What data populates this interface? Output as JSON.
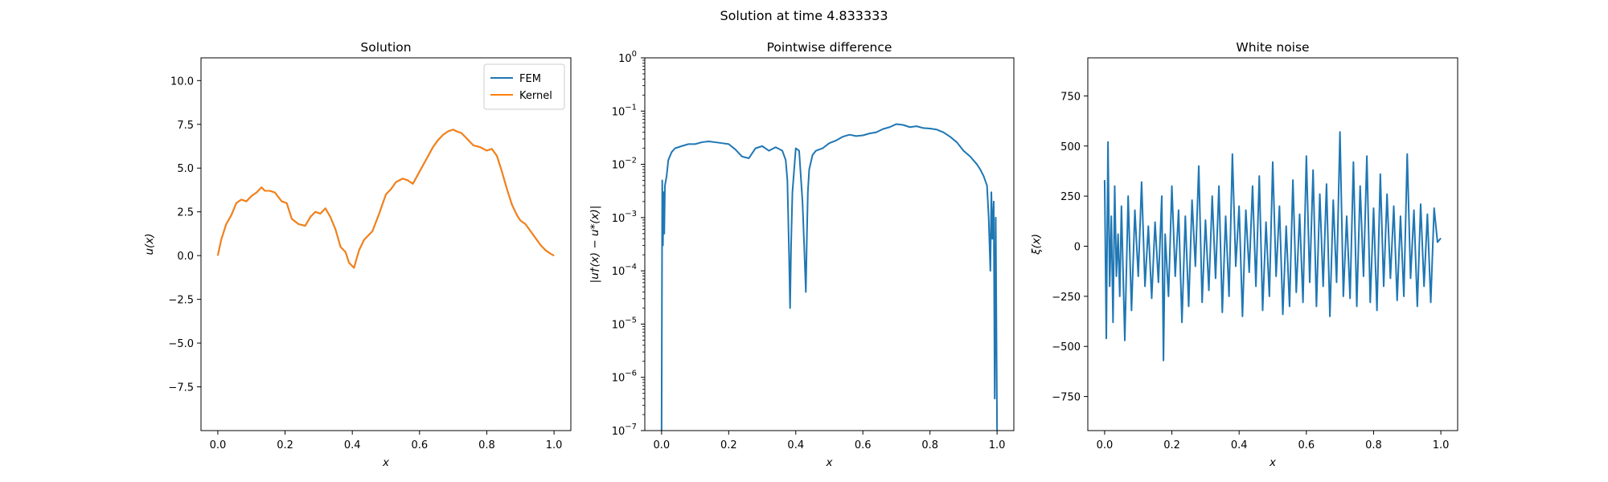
{
  "suptitle": "Solution at time 4.833333",
  "colors": {
    "series1": "#1f77b4",
    "series2": "#ff7f0e"
  },
  "chart_data": [
    {
      "type": "line",
      "title": "Solution",
      "xlabel": "x",
      "ylabel": "u(x)",
      "xlim": [
        -0.05,
        1.05
      ],
      "ylim": [
        -10.0,
        11.3
      ],
      "xticks": [
        0.0,
        0.2,
        0.4,
        0.6,
        0.8,
        1.0
      ],
      "xtick_labels": [
        "0.0",
        "0.2",
        "0.4",
        "0.6",
        "0.8",
        "1.0"
      ],
      "yticks": [
        -7.5,
        -5.0,
        -2.5,
        0.0,
        2.5,
        5.0,
        7.5,
        10.0
      ],
      "ytick_labels": [
        "−7.5",
        "−5.0",
        "−2.5",
        "0.0",
        "2.5",
        "5.0",
        "7.5",
        "10.0"
      ],
      "legend": {
        "placement": "top-right",
        "entries": [
          "FEM",
          "Kernel"
        ]
      },
      "series": [
        {
          "name": "FEM",
          "color": "#1f77b4",
          "x": [
            0.0,
            0.01,
            0.025,
            0.04,
            0.055,
            0.07,
            0.085,
            0.1,
            0.115,
            0.13,
            0.14,
            0.155,
            0.17,
            0.19,
            0.205,
            0.22,
            0.24,
            0.26,
            0.275,
            0.29,
            0.305,
            0.32,
            0.335,
            0.35,
            0.365,
            0.38,
            0.39,
            0.405,
            0.42,
            0.435,
            0.45,
            0.46,
            0.48,
            0.5,
            0.515,
            0.53,
            0.55,
            0.565,
            0.58,
            0.6,
            0.62,
            0.64,
            0.655,
            0.67,
            0.685,
            0.7,
            0.71,
            0.725,
            0.74,
            0.76,
            0.78,
            0.8,
            0.815,
            0.83,
            0.845,
            0.86,
            0.875,
            0.89,
            0.9,
            0.915,
            0.93,
            0.945,
            0.96,
            0.975,
            0.99,
            1.0
          ],
          "y": [
            0.0,
            0.9,
            1.8,
            2.3,
            3.0,
            3.2,
            3.1,
            3.4,
            3.6,
            3.9,
            3.7,
            3.7,
            3.6,
            3.1,
            3.0,
            2.1,
            1.8,
            1.7,
            2.2,
            2.5,
            2.4,
            2.7,
            2.2,
            1.5,
            0.5,
            0.2,
            -0.4,
            -0.7,
            0.3,
            0.9,
            1.2,
            1.4,
            2.4,
            3.5,
            3.8,
            4.2,
            4.4,
            4.3,
            4.1,
            4.8,
            5.5,
            6.2,
            6.6,
            6.9,
            7.1,
            7.2,
            7.1,
            7.0,
            6.7,
            6.3,
            6.2,
            6.0,
            6.1,
            5.7,
            4.8,
            3.8,
            2.9,
            2.3,
            2.0,
            1.8,
            1.4,
            1.0,
            0.6,
            0.3,
            0.1,
            0.0
          ]
        },
        {
          "name": "Kernel",
          "color": "#ff7f0e",
          "x": [
            0.0,
            0.01,
            0.025,
            0.04,
            0.055,
            0.07,
            0.085,
            0.1,
            0.115,
            0.13,
            0.14,
            0.155,
            0.17,
            0.19,
            0.205,
            0.22,
            0.24,
            0.26,
            0.275,
            0.29,
            0.305,
            0.32,
            0.335,
            0.35,
            0.365,
            0.38,
            0.39,
            0.405,
            0.42,
            0.435,
            0.45,
            0.46,
            0.48,
            0.5,
            0.515,
            0.53,
            0.55,
            0.565,
            0.58,
            0.6,
            0.62,
            0.64,
            0.655,
            0.67,
            0.685,
            0.7,
            0.71,
            0.725,
            0.74,
            0.76,
            0.78,
            0.8,
            0.815,
            0.83,
            0.845,
            0.86,
            0.875,
            0.89,
            0.9,
            0.915,
            0.93,
            0.945,
            0.96,
            0.975,
            0.99,
            1.0
          ],
          "y": [
            0.0,
            0.9,
            1.8,
            2.3,
            3.0,
            3.2,
            3.1,
            3.4,
            3.6,
            3.9,
            3.7,
            3.7,
            3.6,
            3.1,
            3.0,
            2.1,
            1.8,
            1.7,
            2.2,
            2.5,
            2.4,
            2.7,
            2.2,
            1.5,
            0.5,
            0.2,
            -0.4,
            -0.7,
            0.3,
            0.9,
            1.2,
            1.4,
            2.4,
            3.5,
            3.8,
            4.2,
            4.4,
            4.3,
            4.1,
            4.8,
            5.5,
            6.2,
            6.6,
            6.9,
            7.1,
            7.2,
            7.1,
            7.0,
            6.7,
            6.3,
            6.2,
            6.0,
            6.1,
            5.7,
            4.8,
            3.8,
            2.9,
            2.3,
            2.0,
            1.8,
            1.4,
            1.0,
            0.6,
            0.3,
            0.1,
            0.0
          ]
        }
      ]
    },
    {
      "type": "line",
      "title": "Pointwise difference",
      "xlabel": "x",
      "ylabel": "|u†(x) − u*(x)|",
      "xlim": [
        -0.05,
        1.05
      ],
      "ylim": [
        1e-07,
        1.0
      ],
      "yscale": "log",
      "xticks": [
        0.0,
        0.2,
        0.4,
        0.6,
        0.8,
        1.0
      ],
      "xtick_labels": [
        "0.0",
        "0.2",
        "0.4",
        "0.6",
        "0.8",
        "1.0"
      ],
      "yticks": [
        1e-07,
        1e-06,
        1e-05,
        0.0001,
        0.001,
        0.01,
        0.1,
        1
      ],
      "ytick_labels": [
        {
          "base": "10",
          "exp": "−7"
        },
        {
          "base": "10",
          "exp": "−6"
        },
        {
          "base": "10",
          "exp": "−5"
        },
        {
          "base": "10",
          "exp": "−4"
        },
        {
          "base": "10",
          "exp": "−3"
        },
        {
          "base": "10",
          "exp": "−2"
        },
        {
          "base": "10",
          "exp": "−1"
        },
        {
          "base": "10",
          "exp": "0"
        }
      ],
      "series": [
        {
          "color": "#1f77b4",
          "x": [
            0.0,
            0.002,
            0.004,
            0.006,
            0.008,
            0.01,
            0.015,
            0.02,
            0.03,
            0.04,
            0.06,
            0.08,
            0.1,
            0.12,
            0.14,
            0.16,
            0.18,
            0.2,
            0.22,
            0.24,
            0.26,
            0.28,
            0.3,
            0.32,
            0.34,
            0.36,
            0.37,
            0.375,
            0.38,
            0.383,
            0.386,
            0.39,
            0.4,
            0.41,
            0.42,
            0.425,
            0.43,
            0.433,
            0.436,
            0.44,
            0.45,
            0.46,
            0.48,
            0.5,
            0.52,
            0.54,
            0.56,
            0.58,
            0.6,
            0.62,
            0.64,
            0.66,
            0.68,
            0.7,
            0.72,
            0.74,
            0.76,
            0.78,
            0.8,
            0.82,
            0.84,
            0.86,
            0.88,
            0.9,
            0.92,
            0.94,
            0.95,
            0.96,
            0.97,
            0.975,
            0.98,
            0.983,
            0.986,
            0.99,
            0.993,
            0.996,
            1.0
          ],
          "y": [
            1e-07,
            0.005,
            0.0003,
            0.003,
            0.0005,
            0.004,
            0.006,
            0.012,
            0.017,
            0.02,
            0.022,
            0.024,
            0.024,
            0.026,
            0.027,
            0.026,
            0.025,
            0.024,
            0.019,
            0.014,
            0.013,
            0.02,
            0.022,
            0.018,
            0.021,
            0.018,
            0.012,
            0.005,
            0.0002,
            2e-05,
            0.0003,
            0.003,
            0.02,
            0.018,
            0.002,
            0.0003,
            4e-05,
            0.0004,
            0.003,
            0.008,
            0.015,
            0.018,
            0.02,
            0.025,
            0.028,
            0.033,
            0.036,
            0.034,
            0.035,
            0.038,
            0.04,
            0.046,
            0.05,
            0.057,
            0.055,
            0.05,
            0.052,
            0.048,
            0.047,
            0.045,
            0.04,
            0.033,
            0.026,
            0.018,
            0.014,
            0.01,
            0.008,
            0.006,
            0.004,
            0.001,
            0.0001,
            0.003,
            0.0004,
            0.002,
            4e-07,
            0.001,
            1e-07
          ]
        }
      ]
    },
    {
      "type": "line",
      "title": "White noise",
      "xlabel": "x",
      "ylabel": "ξ(x)",
      "xlim": [
        -0.05,
        1.05
      ],
      "ylim": [
        -920,
        940
      ],
      "xticks": [
        0.0,
        0.2,
        0.4,
        0.6,
        0.8,
        1.0
      ],
      "xtick_labels": [
        "0.0",
        "0.2",
        "0.4",
        "0.6",
        "0.8",
        "1.0"
      ],
      "yticks": [
        -750,
        -500,
        -250,
        0,
        250,
        500,
        750
      ],
      "ytick_labels": [
        "−750",
        "−500",
        "−250",
        "0",
        "250",
        "500",
        "750"
      ],
      "series": [
        {
          "color": "#1f77b4",
          "x": [
            0.0,
            0.005,
            0.01,
            0.015,
            0.02,
            0.025,
            0.03,
            0.035,
            0.04,
            0.045,
            0.05,
            0.06,
            0.07,
            0.08,
            0.09,
            0.1,
            0.11,
            0.12,
            0.13,
            0.14,
            0.15,
            0.16,
            0.17,
            0.175,
            0.18,
            0.19,
            0.2,
            0.21,
            0.22,
            0.23,
            0.24,
            0.25,
            0.26,
            0.27,
            0.28,
            0.29,
            0.3,
            0.31,
            0.32,
            0.33,
            0.34,
            0.35,
            0.36,
            0.37,
            0.38,
            0.39,
            0.4,
            0.41,
            0.42,
            0.43,
            0.44,
            0.45,
            0.46,
            0.47,
            0.48,
            0.49,
            0.5,
            0.51,
            0.52,
            0.53,
            0.54,
            0.55,
            0.56,
            0.57,
            0.58,
            0.59,
            0.6,
            0.61,
            0.62,
            0.63,
            0.64,
            0.65,
            0.66,
            0.67,
            0.68,
            0.69,
            0.7,
            0.71,
            0.72,
            0.73,
            0.74,
            0.75,
            0.76,
            0.77,
            0.78,
            0.79,
            0.8,
            0.81,
            0.82,
            0.83,
            0.84,
            0.85,
            0.86,
            0.87,
            0.88,
            0.89,
            0.9,
            0.91,
            0.92,
            0.93,
            0.94,
            0.95,
            0.96,
            0.97,
            0.98,
            0.99,
            1.0
          ],
          "y": [
            330,
            -460,
            520,
            -200,
            150,
            -380,
            300,
            -150,
            60,
            -250,
            200,
            -470,
            250,
            -320,
            180,
            -150,
            320,
            -200,
            100,
            -260,
            120,
            -180,
            250,
            -570,
            60,
            -250,
            300,
            -150,
            180,
            -380,
            150,
            -300,
            230,
            -100,
            400,
            -280,
            130,
            -220,
            250,
            -160,
            300,
            -330,
            150,
            -250,
            460,
            -100,
            200,
            -350,
            180,
            -130,
            300,
            -200,
            350,
            -320,
            120,
            -250,
            420,
            -150,
            200,
            -340,
            100,
            -300,
            330,
            -230,
            160,
            -280,
            450,
            -180,
            380,
            -300,
            260,
            -200,
            310,
            -350,
            230,
            -180,
            570,
            -250,
            150,
            -260,
            420,
            -300,
            300,
            -150,
            450,
            -280,
            190,
            -320,
            360,
            -200,
            260,
            -160,
            200,
            -270,
            150,
            -250,
            460,
            -160,
            180,
            -300,
            210,
            -200,
            160,
            -280,
            190,
            20,
            40
          ]
        }
      ]
    }
  ]
}
